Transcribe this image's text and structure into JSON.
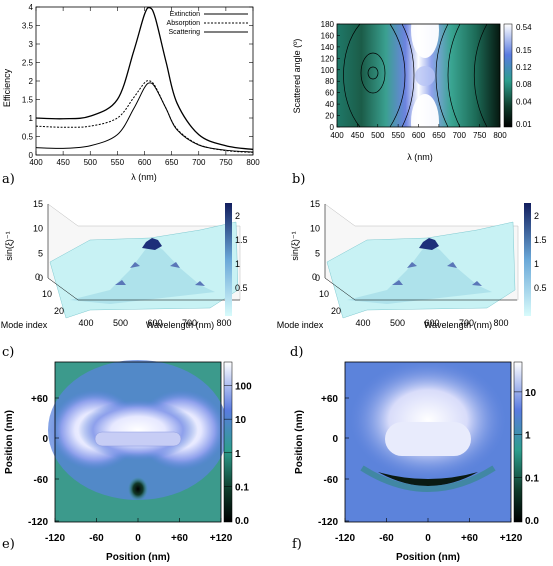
{
  "chart_data": [
    {
      "panel": "a)",
      "type": "line",
      "xlabel": "λ (nm)",
      "ylabel": "Efficiency",
      "xlim": [
        400,
        800
      ],
      "ylim": [
        0,
        4
      ],
      "xticks": [
        "400",
        "450",
        "500",
        "550",
        "600",
        "650",
        "700",
        "750",
        "800"
      ],
      "yticks": [
        "0",
        "0.5",
        "1",
        "1.5",
        "2",
        "2.5",
        "3",
        "3.5",
        "4"
      ],
      "legend_position": "top-right",
      "series": [
        {
          "name": "Extinction",
          "style": "solid",
          "x": [
            400,
            450,
            500,
            550,
            580,
            600,
            610,
            620,
            640,
            660,
            700,
            750,
            800
          ],
          "y": [
            1.0,
            0.98,
            1.05,
            1.5,
            2.8,
            3.8,
            3.98,
            3.7,
            2.5,
            1.4,
            0.55,
            0.25,
            0.15
          ]
        },
        {
          "name": "Absorption",
          "style": "dotted",
          "x": [
            400,
            450,
            500,
            550,
            580,
            600,
            610,
            620,
            640,
            660,
            700,
            750,
            800
          ],
          "y": [
            0.78,
            0.75,
            0.78,
            1.0,
            1.55,
            1.95,
            2.0,
            1.85,
            1.25,
            0.7,
            0.28,
            0.12,
            0.07
          ]
        },
        {
          "name": "Scattering",
          "style": "solid",
          "x": [
            400,
            450,
            500,
            550,
            580,
            600,
            610,
            620,
            640,
            660,
            700,
            750,
            800
          ],
          "y": [
            0.2,
            0.18,
            0.25,
            0.55,
            1.25,
            1.82,
            1.95,
            1.82,
            1.25,
            0.68,
            0.27,
            0.13,
            0.08
          ]
        }
      ]
    },
    {
      "panel": "b)",
      "type": "heatmap",
      "xlabel": "λ (nm)",
      "ylabel": "Scattered angle (º)",
      "xlim": [
        400,
        800
      ],
      "ylim": [
        0,
        180
      ],
      "xticks": [
        "400",
        "450",
        "500",
        "550",
        "600",
        "650",
        "700",
        "750",
        "800"
      ],
      "yticks": [
        "0",
        "20",
        "40",
        "60",
        "80",
        "100",
        "120",
        "140",
        "160",
        "180"
      ],
      "colorbar_ticks": [
        "0.01",
        "0.04",
        "0.08",
        "0.12",
        "0.15",
        "0.54"
      ]
    },
    {
      "panel": "c)",
      "type": "surface3d",
      "xlabel": "Wavelength (nm)",
      "ylabel": "Mode index",
      "zlabel": "sin(ξ)⁻¹",
      "xticks": [
        "400",
        "500",
        "600",
        "700",
        "800"
      ],
      "yticks": [
        "0",
        "10",
        "20"
      ],
      "zticks": [
        "0",
        "5",
        "10",
        "15"
      ],
      "colorbar_ticks": [
        "0.5",
        "1",
        "1.5",
        "2"
      ]
    },
    {
      "panel": "d)",
      "type": "surface3d",
      "xlabel": "Wavelength (nm)",
      "ylabel": "Mode index",
      "zlabel": "sin(ξ)⁻¹",
      "xticks": [
        "400",
        "500",
        "600",
        "700",
        "800"
      ],
      "yticks": [
        "0",
        "10",
        "20"
      ],
      "zticks": [
        "0",
        "5",
        "10",
        "15"
      ],
      "colorbar_ticks": [
        "0.5",
        "1",
        "1.5",
        "2"
      ]
    },
    {
      "panel": "e)",
      "type": "heatmap",
      "xlabel": "Position (nm)",
      "ylabel": "Position (nm)",
      "xticks": [
        "-120",
        "-60",
        "0",
        "+60",
        "+120"
      ],
      "yticks": [
        "+60",
        "0",
        "-60",
        "-120"
      ],
      "colorbar_ticks": [
        "100",
        "10",
        "1",
        "0.1",
        "0.0"
      ]
    },
    {
      "panel": "f)",
      "type": "heatmap",
      "xlabel": "Position (nm)",
      "ylabel": "Position (nm)",
      "xticks": [
        "-120",
        "-60",
        "0",
        "+60",
        "+120"
      ],
      "yticks": [
        "+60",
        "0",
        "-60",
        "-120"
      ],
      "colorbar_ticks": [
        "10",
        "1",
        "0.1",
        "0.0"
      ]
    }
  ],
  "colors": {
    "line": "#000000",
    "cold": "#0b2418",
    "mid": "#5a8be0",
    "hot": "#ffffff",
    "surface": "#bfeef2",
    "peak": "#1d2f7a"
  }
}
